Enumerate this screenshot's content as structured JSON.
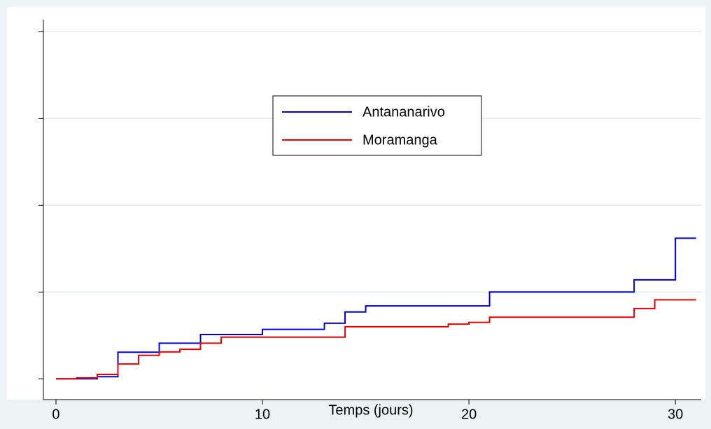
{
  "chart_data": {
    "type": "step",
    "x_label": "Temps (jours)",
    "xlim": [
      -0.61,
      31.25
    ],
    "xticks": [
      0,
      10,
      20,
      30
    ],
    "ylim": [
      -0.024,
      0.414
    ],
    "yticks": [
      0,
      0.1,
      0.2,
      0.3,
      0.4
    ],
    "grid": true,
    "legend": "top",
    "series": [
      {
        "name": "Antananarivo",
        "color": "#0000dd",
        "x": [
          0,
          2,
          3,
          5,
          7,
          10,
          13,
          14,
          15,
          21,
          28,
          30,
          31
        ],
        "values": [
          0,
          0.0024,
          0.0306,
          0.041,
          0.051,
          0.057,
          0.064,
          0.077,
          0.084,
          0.1,
          0.114,
          0.162,
          0.162
        ]
      },
      {
        "name": "Moramanga",
        "color": "#ee0000",
        "x": [
          0,
          1,
          2,
          3,
          4,
          5,
          6,
          7,
          8,
          14,
          19,
          20,
          21,
          28,
          29,
          31
        ],
        "values": [
          0,
          0.001,
          0.005,
          0.017,
          0.027,
          0.031,
          0.034,
          0.041,
          0.048,
          0.06,
          0.063,
          0.065,
          0.071,
          0.081,
          0.091,
          0.091
        ]
      }
    ]
  }
}
